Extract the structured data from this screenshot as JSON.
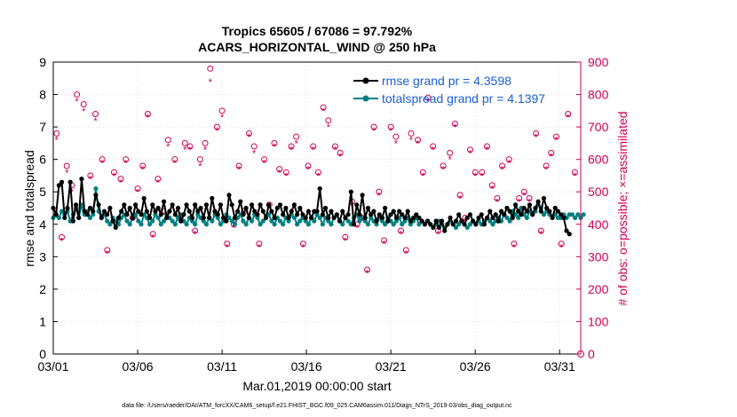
{
  "chart_data": {
    "type": "line",
    "title_line1": "Tropics 65605 / 67086 = 97.792%",
    "title_line2": "ACARS_HORIZONTAL_WIND @ 250 hPa",
    "ylabel": "rmse and totalspread",
    "y2label": "# of obs: o=possible; ×=assimilated",
    "xlabel": "Mar.01,2019 00:00:00 start",
    "footer": "data file: /Users/raeder/DAI/ATM_forcXX/CAM6_setup/f.e21.FHIST_BGC.f09_025.CAM6assim.011/Diags_NTrS_2019-03/obs_diag_output.nc",
    "xlim": [
      1,
      32.25
    ],
    "ylim": [
      0,
      9
    ],
    "y2lim": [
      0,
      900
    ],
    "xticks": [
      1,
      6,
      11,
      16,
      21,
      26,
      31
    ],
    "xtick_labels": [
      "03/01",
      "03/06",
      "03/11",
      "03/16",
      "03/21",
      "03/26",
      "03/31"
    ],
    "yticks": [
      0,
      1,
      2,
      3,
      4,
      5,
      6,
      7,
      8,
      9
    ],
    "ytick_labels": [
      "0",
      "1",
      "2",
      "3",
      "4",
      "5",
      "6",
      "7",
      "8",
      "9"
    ],
    "y2ticks": [
      0,
      100,
      200,
      300,
      400,
      500,
      600,
      700,
      800,
      900
    ],
    "y2tick_labels": [
      "0",
      "100",
      "200",
      "300",
      "400",
      "500",
      "600",
      "700",
      "800",
      "900"
    ],
    "grid": true,
    "legend_position": "top-right",
    "colors": {
      "rmse": "#000000",
      "spread": "#008080",
      "obs": "#cc0055",
      "grid": "#dddddd"
    },
    "series": [
      {
        "name": "rmse grand pr = 4.3598",
        "values": [
          4.5,
          4.3,
          5.2,
          5.3,
          4.2,
          4.5,
          5.3,
          4.1,
          4.6,
          4.2,
          5.4,
          4.4,
          4.3,
          4.5,
          4.4,
          4.9,
          4.6,
          4.2,
          4.4,
          4.3,
          4.5,
          4.1,
          3.9,
          4.2,
          4.4,
          4.6,
          4.3,
          4.5,
          4.2,
          4.6,
          4.4,
          4.3,
          4.8,
          4.4,
          4.2,
          4.6,
          4.4,
          4.5,
          4.3,
          4.7,
          4.2,
          4.4,
          4.6,
          4.3,
          4.5,
          4.1,
          4.3,
          4.6,
          4.4,
          4.2,
          4.6,
          4.4,
          4.5,
          4.2,
          4.6,
          4.2,
          4.8,
          4.4,
          4.3,
          4.6,
          4.2,
          4.1,
          4.9,
          4.6,
          4.2,
          4.4,
          4.7,
          4.3,
          4.5,
          4.2,
          4.6,
          4.4,
          4.3,
          4.6,
          4.4,
          4.2,
          4.6,
          4.4,
          4.2,
          4.5,
          4.6,
          4.3,
          4.5,
          4.2,
          4.4,
          4.6,
          4.3,
          4.5,
          4.3,
          4.2,
          4.4,
          4.2,
          4.4,
          4.4,
          5.1,
          4.3,
          4.5,
          4.2,
          4.4,
          4.2,
          4.3,
          4.1,
          4.4,
          4.2,
          4.3,
          5.0,
          4.0,
          4.6,
          4.3,
          4.9,
          4.2,
          4.5,
          4.3,
          4.4,
          4.1,
          4.3,
          4.2,
          4.5,
          4.1,
          4.3,
          4.4,
          4.2,
          4.4,
          4.3,
          4.2,
          4.4,
          4.1,
          4.2,
          4.3,
          4.2,
          4.1,
          4.0,
          4.1,
          4.0,
          3.9,
          4.1,
          3.9,
          4.1,
          3.8,
          4.0,
          4.2,
          4.0,
          4.1,
          4.3,
          4.1,
          4.0,
          4.2,
          4.3,
          4.1,
          4.0,
          4.2,
          4.3,
          4.0,
          4.2,
          4.4,
          4.2,
          4.3,
          4.1,
          4.4,
          4.3,
          4.5,
          4.4,
          4.2,
          4.6,
          4.4,
          4.3,
          4.5,
          4.4,
          4.6,
          4.3,
          4.5,
          4.7,
          4.4,
          4.8,
          4.5,
          4.4,
          4.2,
          4.5,
          4.4,
          4.3,
          4.2,
          3.8,
          3.7
        ],
        "note": "values sampled every 0.1667 day starting 03/01"
      },
      {
        "name": "totalspread grand pr = 4.1397",
        "values": [
          4.2,
          4.3,
          4.2,
          4.4,
          4.3,
          4.4,
          4.1,
          4.3,
          4.5,
          4.2,
          4.6,
          4.3,
          4.4,
          4.2,
          4.3,
          5.1,
          4.4,
          4.2,
          4.3,
          4.1,
          4.0,
          4.2,
          4.1,
          4.0,
          4.2,
          4.3,
          4.1,
          4.0,
          4.2,
          4.3,
          4.1,
          4.0,
          4.3,
          4.2,
          4.0,
          4.1,
          4.3,
          4.2,
          4.0,
          4.1,
          4.3,
          4.2,
          4.1,
          4.0,
          4.2,
          4.3,
          4.1,
          4.0,
          4.2,
          4.1,
          4.0,
          4.3,
          4.2,
          4.1,
          4.0,
          4.2,
          4.1,
          4.3,
          4.2,
          4.0,
          4.1,
          4.3,
          4.2,
          4.1,
          4.0,
          4.2,
          4.3,
          4.1,
          4.0,
          4.2,
          4.1,
          4.3,
          4.2,
          4.0,
          4.1,
          4.2,
          4.3,
          4.1,
          4.0,
          4.2,
          4.1,
          4.0,
          4.2,
          4.1,
          4.3,
          4.2,
          4.0,
          4.1,
          4.2,
          4.1,
          4.0,
          4.2,
          4.1,
          4.3,
          4.2,
          4.0,
          4.2,
          4.1,
          4.0,
          4.2,
          4.3,
          4.1,
          4.0,
          4.2,
          4.1,
          4.0,
          4.2,
          4.3,
          4.1,
          4.2,
          4.1,
          4.0,
          4.2,
          4.1,
          4.0,
          4.2,
          4.1,
          4.0,
          4.2,
          4.1,
          4.0,
          4.1,
          4.2,
          4.0,
          4.1,
          4.2,
          4.0,
          4.1,
          4.2,
          4.0,
          4.1,
          4.0,
          4.1,
          4.0,
          3.9,
          4.0,
          4.1,
          4.0,
          3.9,
          4.0,
          4.1,
          4.0,
          3.9,
          4.0,
          4.1,
          4.0,
          3.9,
          4.0,
          4.1,
          4.0,
          4.1,
          4.0,
          4.1,
          4.2,
          4.1,
          4.0,
          4.1,
          4.2,
          4.1,
          4.3,
          4.2,
          4.1,
          4.4,
          4.3,
          4.2,
          4.5,
          4.3,
          4.2,
          4.4,
          4.3,
          4.4,
          4.6,
          4.5,
          4.3,
          4.4,
          4.3,
          4.2,
          4.3,
          4.2,
          4.2,
          4.3,
          4.2,
          4.3,
          4.3,
          4.2,
          4.3,
          4.2,
          4.3
        ],
        "note": "values sampled every 0.1667 day starting 03/01"
      }
    ],
    "obs_possible": {
      "x": [
        1.2,
        1.5,
        1.8,
        2.1,
        2.4,
        2.8,
        3.2,
        3.5,
        3.9,
        4.2,
        4.6,
        5.0,
        5.3,
        5.7,
        6.0,
        6.3,
        6.6,
        6.9,
        7.2,
        7.5,
        7.8,
        8.2,
        8.5,
        8.8,
        9.1,
        9.4,
        9.7,
        10.0,
        10.3,
        10.7,
        11.0,
        11.3,
        11.7,
        12.0,
        12.3,
        12.6,
        12.9,
        13.2,
        13.5,
        13.8,
        14.1,
        14.4,
        14.8,
        15.1,
        15.4,
        15.8,
        16.1,
        16.4,
        16.7,
        17.0,
        17.3,
        17.7,
        18.0,
        18.3,
        18.7,
        19.0,
        19.3,
        19.6,
        20.0,
        20.3,
        20.6,
        21.0,
        21.3,
        21.6,
        21.9,
        22.2,
        22.6,
        22.9,
        23.2,
        23.5,
        23.8,
        24.1,
        24.5,
        24.8,
        25.1,
        25.4,
        25.7,
        26.0,
        26.4,
        26.7,
        27.0,
        27.3,
        27.6,
        28.0,
        28.3,
        28.6,
        28.9,
        29.2,
        29.6,
        29.9,
        30.2,
        30.5,
        30.8,
        31.1,
        31.5,
        31.9
      ],
      "y": [
        680,
        360,
        580,
        520,
        800,
        770,
        550,
        740,
        600,
        320,
        560,
        540,
        600,
        420,
        510,
        580,
        740,
        370,
        540,
        440,
        660,
        600,
        420,
        650,
        640,
        380,
        600,
        650,
        880,
        700,
        750,
        340,
        400,
        580,
        440,
        680,
        640,
        340,
        600,
        460,
        650,
        570,
        560,
        640,
        670,
        340,
        580,
        640,
        560,
        760,
        720,
        640,
        620,
        360,
        470,
        400,
        420,
        260,
        700,
        500,
        350,
        700,
        670,
        380,
        320,
        680,
        660,
        560,
        790,
        640,
        380,
        580,
        620,
        710,
        490,
        420,
        630,
        560,
        560,
        640,
        520,
        480,
        580,
        600,
        340,
        480,
        500,
        480,
        680,
        380,
        580,
        620,
        670,
        340,
        740,
        560
      ],
      "note": "right-axis counts"
    },
    "obs_assimilated": {
      "x": [
        1.2,
        1.5,
        1.8,
        2.1,
        2.4,
        2.8,
        3.2,
        3.5,
        3.9,
        4.2,
        4.6,
        5.0,
        5.3,
        5.7,
        6.0,
        6.3,
        6.6,
        6.9,
        7.2,
        7.5,
        7.8,
        8.2,
        8.5,
        8.8,
        9.1,
        9.4,
        9.7,
        10.0,
        10.3,
        10.7,
        11.0,
        11.3,
        11.7,
        12.0,
        12.3,
        12.6,
        12.9,
        13.2,
        13.5,
        13.8,
        14.1,
        14.4,
        14.8,
        15.1,
        15.4,
        15.8,
        16.1,
        16.4,
        16.7,
        17.0,
        17.3,
        17.7,
        18.0,
        18.3,
        18.7,
        19.0,
        19.3,
        19.6,
        20.0,
        20.3,
        20.6,
        21.0,
        21.3,
        21.6,
        21.9,
        22.2,
        22.6,
        22.9,
        23.2,
        23.5,
        23.8,
        24.1,
        24.5,
        24.8,
        25.1,
        25.4,
        25.7,
        26.0,
        26.4,
        26.7,
        27.0,
        27.3,
        27.6,
        28.0,
        28.3,
        28.6,
        28.9,
        29.2,
        29.6,
        29.9,
        30.2,
        30.5,
        30.8,
        31.1,
        31.5,
        31.9
      ],
      "y": [
        660,
        350,
        560,
        500,
        780,
        750,
        540,
        720,
        590,
        310,
        550,
        530,
        590,
        410,
        500,
        570,
        730,
        360,
        530,
        430,
        640,
        590,
        410,
        630,
        630,
        370,
        580,
        630,
        840,
        690,
        730,
        330,
        390,
        570,
        430,
        670,
        620,
        330,
        590,
        450,
        640,
        560,
        550,
        630,
        650,
        330,
        570,
        630,
        550,
        750,
        700,
        630,
        610,
        350,
        460,
        390,
        410,
        250,
        690,
        490,
        340,
        690,
        650,
        370,
        310,
        660,
        650,
        550,
        780,
        630,
        370,
        570,
        600,
        700,
        480,
        410,
        620,
        550,
        550,
        630,
        510,
        470,
        570,
        590,
        330,
        470,
        490,
        470,
        670,
        370,
        570,
        610,
        660,
        330,
        730,
        550
      ]
    },
    "legend": [
      {
        "label": "rmse grand pr = 4.3598",
        "color": "#000000"
      },
      {
        "label": "totalspread grand pr = 4.1397",
        "color": "#008080"
      }
    ]
  }
}
